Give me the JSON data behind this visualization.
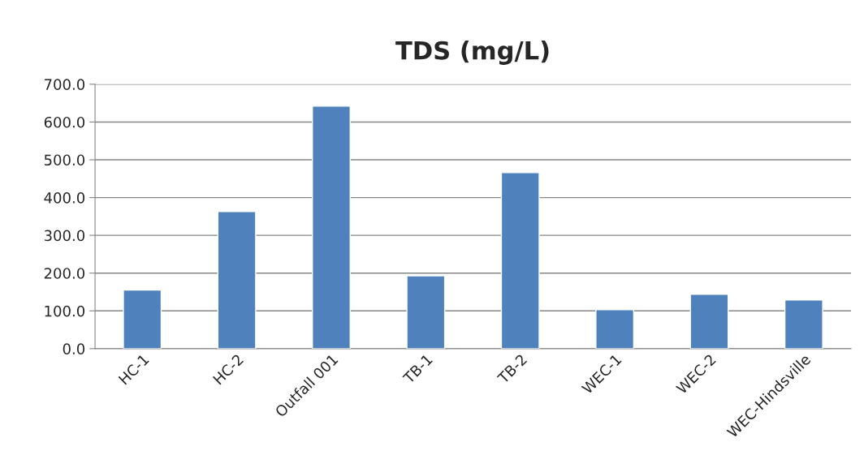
{
  "chart_data": {
    "type": "bar",
    "title": "TDS (mg/L)",
    "categories": [
      "HC-1",
      "HC-2",
      "Outfall 001",
      "TB-1",
      "TB-2",
      "WEC-1",
      "WEC-2",
      "WEC-Hindsville"
    ],
    "values": [
      155,
      363,
      642,
      193,
      466,
      103,
      144,
      129
    ],
    "color": "#4f81bd",
    "ylim": [
      0,
      700
    ],
    "yticks": [
      {
        "value": 0,
        "label": "0.0"
      },
      {
        "value": 100,
        "label": "100.0"
      },
      {
        "value": 200,
        "label": "200.0"
      },
      {
        "value": 300,
        "label": "300.0"
      },
      {
        "value": 400,
        "label": "400.0"
      },
      {
        "value": 500,
        "label": "500.0"
      },
      {
        "value": 600,
        "label": "600.0"
      },
      {
        "value": 700,
        "label": "700.0"
      }
    ],
    "grid": "y",
    "legend": false
  }
}
